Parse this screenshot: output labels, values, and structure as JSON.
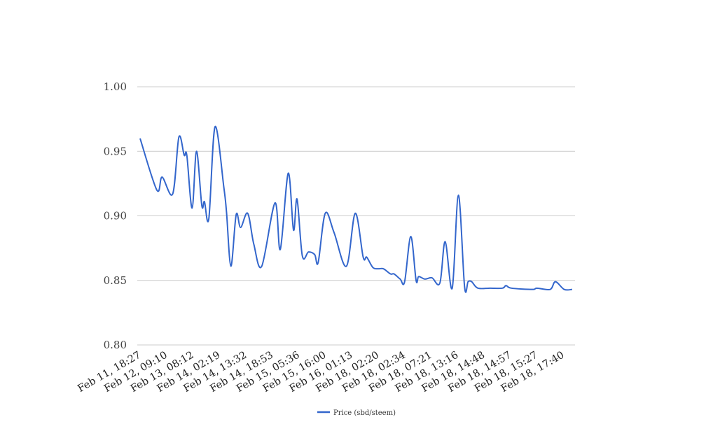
{
  "chart_data": {
    "type": "line",
    "title": "",
    "xlabel": "",
    "ylabel": "",
    "ylim": [
      0.8,
      1.0
    ],
    "yticks": [
      "0.80",
      "0.85",
      "0.90",
      "0.95",
      "1.00"
    ],
    "grid": "horizontal",
    "legend_placement": "bottom",
    "x_tick_labels": [
      {
        "x": 0,
        "label": "Feb 11, 18:27"
      },
      {
        "x": 3,
        "label": "Feb 12, 09:10"
      },
      {
        "x": 6,
        "label": "Feb 13, 08:12"
      },
      {
        "x": 9,
        "label": "Feb 14, 02:19"
      },
      {
        "x": 12,
        "label": "Feb 14, 13:32"
      },
      {
        "x": 15,
        "label": "Feb 14, 18:53"
      },
      {
        "x": 18,
        "label": "Feb 15, 05:36"
      },
      {
        "x": 21,
        "label": "Feb 15, 16:00"
      },
      {
        "x": 24,
        "label": "Feb 16, 01:13"
      },
      {
        "x": 27,
        "label": "Feb 18, 02:20"
      },
      {
        "x": 30,
        "label": "Feb 18, 02:34"
      },
      {
        "x": 33,
        "label": "Feb 18, 07:21"
      },
      {
        "x": 36,
        "label": "Feb 18, 13:16"
      },
      {
        "x": 39,
        "label": "Feb 18, 14:48"
      },
      {
        "x": 42,
        "label": "Feb 18, 14:57"
      },
      {
        "x": 45,
        "label": "Feb 18, 15:27"
      },
      {
        "x": 48,
        "label": "Feb 18, 17:40"
      }
    ],
    "series": [
      {
        "name": "Price (sbd/steem)",
        "color": "#3366cc",
        "points": [
          [
            0,
            0.96
          ],
          [
            1.9,
            0.92
          ],
          [
            2.5,
            0.93
          ],
          [
            3.7,
            0.917
          ],
          [
            4.4,
            0.961
          ],
          [
            5.0,
            0.947
          ],
          [
            5.3,
            0.947
          ],
          [
            5.9,
            0.906
          ],
          [
            6.4,
            0.95
          ],
          [
            7.0,
            0.908
          ],
          [
            7.3,
            0.911
          ],
          [
            7.8,
            0.898
          ],
          [
            8.5,
            0.969
          ],
          [
            9.5,
            0.922
          ],
          [
            9.8,
            0.903
          ],
          [
            10.3,
            0.861
          ],
          [
            10.9,
            0.901
          ],
          [
            11.4,
            0.891
          ],
          [
            12.2,
            0.902
          ],
          [
            12.9,
            0.878
          ],
          [
            13.8,
            0.861
          ],
          [
            15.3,
            0.91
          ],
          [
            15.9,
            0.874
          ],
          [
            16.8,
            0.933
          ],
          [
            17.4,
            0.889
          ],
          [
            17.8,
            0.913
          ],
          [
            18.4,
            0.869
          ],
          [
            19.1,
            0.872
          ],
          [
            19.8,
            0.87
          ],
          [
            20.2,
            0.864
          ],
          [
            21.0,
            0.902
          ],
          [
            22.0,
            0.887
          ],
          [
            23.4,
            0.861
          ],
          [
            24.4,
            0.902
          ],
          [
            25.3,
            0.868
          ],
          [
            25.7,
            0.868
          ],
          [
            26.4,
            0.86
          ],
          [
            27.0,
            0.859
          ],
          [
            27.6,
            0.859
          ],
          [
            28.4,
            0.855
          ],
          [
            28.8,
            0.855
          ],
          [
            29.5,
            0.851
          ],
          [
            30.0,
            0.849
          ],
          [
            30.7,
            0.884
          ],
          [
            31.3,
            0.85
          ],
          [
            31.6,
            0.853
          ],
          [
            32.3,
            0.851
          ],
          [
            33.1,
            0.852
          ],
          [
            34.0,
            0.848
          ],
          [
            34.6,
            0.88
          ],
          [
            35.4,
            0.844
          ],
          [
            36.1,
            0.916
          ],
          [
            36.8,
            0.845
          ],
          [
            37.2,
            0.849
          ],
          [
            37.6,
            0.849
          ],
          [
            38.3,
            0.844
          ],
          [
            39.7,
            0.844
          ],
          [
            41.1,
            0.844
          ],
          [
            41.5,
            0.846
          ],
          [
            42.1,
            0.844
          ],
          [
            44.5,
            0.843
          ],
          [
            45.0,
            0.844
          ],
          [
            46.5,
            0.843
          ],
          [
            47.1,
            0.849
          ],
          [
            48.1,
            0.843
          ],
          [
            49.0,
            0.843
          ]
        ]
      }
    ]
  }
}
